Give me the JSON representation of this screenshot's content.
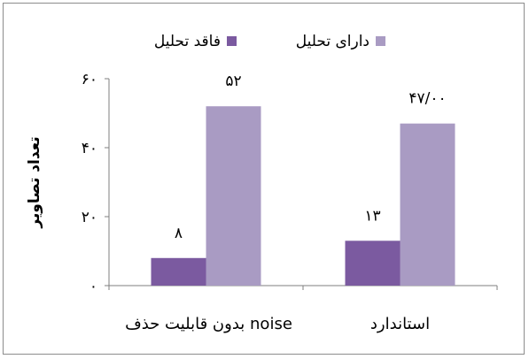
{
  "chart_data": {
    "type": "bar",
    "categories": [
      "بدون قابلیت حذف noise",
      "استاندارد"
    ],
    "series": [
      {
        "name": "فاقد تحلیل",
        "values": [
          8,
          13
        ],
        "labels": [
          "۸",
          "۱۳"
        ],
        "color": "#7b5aa0"
      },
      {
        "name": "دارای تحلیل",
        "values": [
          52,
          47
        ],
        "labels": [
          "۵۲",
          "۴۷/۰۰"
        ],
        "color": "#a99bc3"
      }
    ],
    "ylabel": "تعداد تصاویر",
    "ylim": [
      0,
      60
    ],
    "yticks": [
      0,
      20,
      40,
      60
    ],
    "ytick_labels": [
      "۰",
      "۲۰",
      "۴۰",
      "۶۰"
    ],
    "legend_position": "top",
    "grid": false
  }
}
